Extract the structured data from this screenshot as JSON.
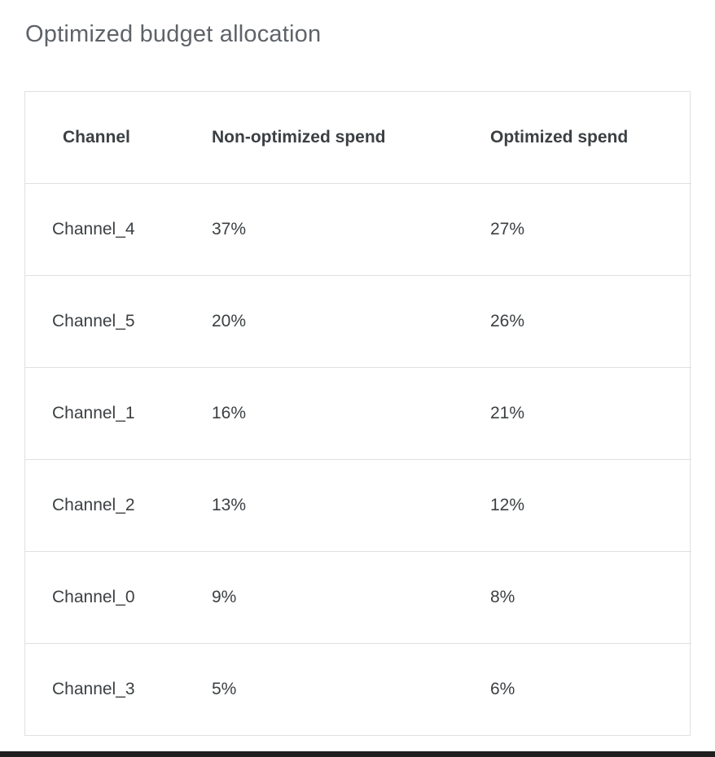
{
  "page": {
    "title": "Optimized budget allocation"
  },
  "table": {
    "headers": [
      "Channel",
      "Non-optimized spend",
      "Optimized spend"
    ],
    "rows": [
      {
        "channel": "Channel_4",
        "non_optimized": "37%",
        "optimized": "27%"
      },
      {
        "channel": "Channel_5",
        "non_optimized": "20%",
        "optimized": "26%"
      },
      {
        "channel": "Channel_1",
        "non_optimized": "16%",
        "optimized": "21%"
      },
      {
        "channel": "Channel_2",
        "non_optimized": "13%",
        "optimized": "12%"
      },
      {
        "channel": "Channel_0",
        "non_optimized": "9%",
        "optimized": "8%"
      },
      {
        "channel": "Channel_3",
        "non_optimized": "5%",
        "optimized": "6%"
      }
    ]
  },
  "chart_data": {
    "type": "table",
    "title": "Optimized budget allocation",
    "columns": [
      "Channel",
      "Non-optimized spend",
      "Optimized spend"
    ],
    "categories": [
      "Channel_4",
      "Channel_5",
      "Channel_1",
      "Channel_2",
      "Channel_0",
      "Channel_3"
    ],
    "series": [
      {
        "name": "Non-optimized spend",
        "values": [
          37,
          20,
          16,
          13,
          9,
          5
        ],
        "unit": "%"
      },
      {
        "name": "Optimized spend",
        "values": [
          27,
          26,
          21,
          12,
          8,
          6
        ],
        "unit": "%"
      }
    ]
  },
  "colors": {
    "title_text": "#5f6368",
    "header_text": "#3c4043",
    "cell_text": "#3c4043",
    "border": "#e0e0e0",
    "background": "#ffffff",
    "bottom_bar": "#1f1f1f"
  }
}
